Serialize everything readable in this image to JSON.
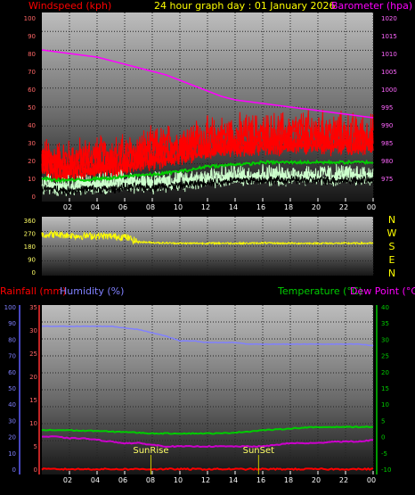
{
  "header": {
    "wind_label": "Windspeed (kph)",
    "title": "24 hour graph day : 01 January 2026",
    "baro_label": "Barometer (hpa)"
  },
  "lower_header": {
    "rain_label": "Rainfall (mm)",
    "humidity_label": "Humidity (%)",
    "temp_label": "Temperature (°C)",
    "dew_label": "Dew Point (°C)"
  },
  "compass": [
    "N",
    "W",
    "S",
    "E",
    "N"
  ],
  "annotations": {
    "sunrise": "SunRise",
    "sunset": "SunSet"
  },
  "colors": {
    "wind_label": "#ff0000",
    "title": "#ffff00",
    "baro": "#ff00ff",
    "wind_gust": "#ff0000",
    "wind_avg": "#00cc00",
    "wind_min": "#ccffcc",
    "wind_dark": "#000000",
    "direction": "#ffff00",
    "rain": "#ff0000",
    "humidity": "#8080ff",
    "temperature": "#00cc00",
    "dewpoint": "#cc00cc",
    "compass": "#ffff00"
  },
  "chart_data": [
    {
      "type": "line",
      "title": "24 hour graph day : 01 January 2026",
      "x_ticks": [
        "02",
        "04",
        "06",
        "08",
        "10",
        "12",
        "14",
        "16",
        "18",
        "20",
        "22",
        "00"
      ],
      "y_left": {
        "label": "Windspeed (kph)",
        "range": [
          0,
          100
        ],
        "ticks": [
          0,
          10,
          20,
          30,
          40,
          50,
          60,
          70,
          80,
          90,
          100
        ]
      },
      "y_right": {
        "label": "Barometer (hpa)",
        "range": [
          970,
          1020
        ],
        "ticks": [
          975,
          980,
          985,
          990,
          995,
          1000,
          1005,
          1010,
          1015,
          1020
        ]
      },
      "grid": true,
      "series": [
        {
          "name": "Windspeed (kph)",
          "axis": "left",
          "x": [
            0,
            1,
            2,
            3,
            4,
            5,
            6,
            7,
            8,
            9,
            10,
            11,
            12,
            13,
            14,
            15,
            16,
            17,
            18,
            19,
            20,
            21,
            22,
            23,
            24
          ],
          "values": [
            20,
            19,
            19,
            20,
            21,
            21,
            22,
            24,
            25,
            27,
            28,
            30,
            31,
            32,
            33,
            33,
            34,
            34,
            34,
            35,
            35,
            34,
            34,
            33,
            33
          ]
        },
        {
          "axis": "left",
          "x": [
            0,
            1,
            2,
            3,
            4,
            5,
            6,
            7,
            8,
            9,
            10,
            11,
            12,
            13,
            14,
            15,
            16,
            17,
            18,
            19,
            20,
            21,
            22,
            23,
            24
          ],
          "values": [
            10,
            9,
            9,
            9,
            10,
            10,
            11,
            12,
            12,
            13,
            14,
            15,
            17,
            17,
            18,
            18,
            19,
            19,
            19,
            19,
            19,
            19,
            19,
            19,
            19
          ]
        },
        {
          "axis": "left",
          "x": [
            0,
            1,
            2,
            3,
            4,
            5,
            6,
            7,
            8,
            9,
            10,
            11,
            12,
            13,
            14,
            15,
            16,
            17,
            18,
            19,
            20,
            21,
            22,
            23,
            24
          ],
          "values": [
            5,
            5,
            4,
            5,
            5,
            5,
            6,
            6,
            6,
            7,
            7,
            8,
            9,
            9,
            10,
            10,
            10,
            10,
            10,
            10,
            10,
            10,
            10,
            10,
            10
          ]
        },
        {
          "name": "Barometer (hpa)",
          "axis": "right",
          "x": [
            0,
            1,
            2,
            3,
            4,
            5,
            6,
            7,
            8,
            9,
            10,
            11,
            12,
            13,
            14,
            15,
            16,
            17,
            18,
            19,
            20,
            21,
            22,
            23,
            24
          ],
          "values": [
            1011,
            1010.5,
            1010,
            1009.5,
            1009,
            1008,
            1007,
            1006,
            1005,
            1004,
            1002.5,
            1001,
            999.5,
            998,
            997,
            996.5,
            996,
            995.5,
            995,
            994.5,
            994,
            993.5,
            993,
            992.5,
            992
          ]
        }
      ]
    },
    {
      "type": "line",
      "x_ticks": [
        "02",
        "04",
        "06",
        "08",
        "10",
        "12",
        "14",
        "16",
        "18",
        "20",
        "22",
        "00"
      ],
      "y_left": {
        "range": [
          0,
          360
        ],
        "ticks": [
          0,
          90,
          180,
          270,
          360
        ]
      },
      "y_right": {
        "labels": [
          "N",
          "W",
          "S",
          "E",
          "N"
        ]
      },
      "grid": true,
      "series": [
        {
          "name": "Wind direction",
          "x": [
            0,
            1,
            2,
            3,
            4,
            5,
            6,
            7,
            8,
            9,
            10,
            11,
            12,
            13,
            14,
            15,
            16,
            17,
            18,
            19,
            20,
            21,
            22,
            23,
            24
          ],
          "values": [
            260,
            262,
            255,
            250,
            252,
            248,
            245,
            210,
            205,
            202,
            200,
            200,
            200,
            201,
            200,
            200,
            202,
            200,
            200,
            200,
            200,
            200,
            200,
            200,
            200
          ]
        }
      ]
    },
    {
      "type": "line",
      "x_ticks": [
        "02",
        "04",
        "06",
        "08",
        "10",
        "12",
        "14",
        "16",
        "18",
        "20",
        "22",
        "00"
      ],
      "y_left_rain": {
        "label": "Rainfall (mm)",
        "range": [
          0,
          35
        ],
        "ticks": [
          0,
          5,
          10,
          15,
          20,
          25,
          30,
          35
        ]
      },
      "y_left_humidity": {
        "label": "Humidity (%)",
        "range": [
          0,
          100
        ],
        "ticks": [
          0,
          10,
          20,
          30,
          40,
          50,
          60,
          70,
          80,
          90,
          100
        ]
      },
      "y_right": {
        "label": "Temperature (°C)",
        "range": [
          -10,
          40
        ],
        "ticks": [
          -10,
          -5,
          0,
          5,
          10,
          15,
          20,
          25,
          30,
          35,
          40
        ]
      },
      "annotations": [
        {
          "text": "SunRise",
          "x": 7.9
        },
        {
          "text": "SunSet",
          "x": 15.7
        }
      ],
      "grid": true,
      "series": [
        {
          "name": "Humidity (%)",
          "axis": "humidity",
          "x": [
            0,
            1,
            2,
            3,
            4,
            5,
            6,
            7,
            8,
            9,
            10,
            11,
            12,
            13,
            14,
            15,
            16,
            17,
            18,
            19,
            20,
            21,
            22,
            23,
            24
          ],
          "values": [
            88,
            88,
            88,
            88,
            88,
            88,
            87,
            86,
            84,
            82,
            79,
            79,
            78,
            78,
            78,
            77,
            77,
            77,
            77,
            77,
            77,
            77,
            77,
            77,
            76
          ]
        },
        {
          "name": "Temperature (°C)",
          "axis": "right",
          "x": [
            0,
            1,
            2,
            3,
            4,
            5,
            6,
            7,
            8,
            9,
            10,
            11,
            12,
            13,
            14,
            15,
            16,
            17,
            18,
            19,
            20,
            21,
            22,
            23,
            24
          ],
          "values": [
            2,
            2,
            2,
            1.8,
            1.8,
            1.5,
            1.5,
            1.2,
            1,
            1,
            1,
            1,
            1,
            1,
            1.3,
            1.6,
            2,
            2.2,
            2.5,
            2.8,
            2.9,
            3,
            3,
            3,
            3
          ]
        },
        {
          "name": "Dew Point (°C)",
          "axis": "right",
          "x": [
            0,
            1,
            2,
            3,
            4,
            5,
            6,
            7,
            8,
            9,
            10,
            11,
            12,
            13,
            14,
            15,
            16,
            17,
            18,
            19,
            20,
            21,
            22,
            23,
            24
          ],
          "values": [
            0,
            0,
            -0.5,
            -0.5,
            -1,
            -1.5,
            -2,
            -2,
            -2.5,
            -3,
            -3,
            -3,
            -3,
            -3,
            -3,
            -3,
            -3,
            -2.5,
            -2,
            -2,
            -2,
            -1.5,
            -1.5,
            -1.5,
            -1
          ]
        },
        {
          "name": "Rainfall (mm)",
          "axis": "rain",
          "x": [
            0,
            1,
            2,
            3,
            4,
            5,
            6,
            7,
            8,
            9,
            10,
            11,
            12,
            13,
            14,
            15,
            16,
            17,
            18,
            19,
            20,
            21,
            22,
            23,
            24
          ],
          "values": [
            0,
            0,
            0,
            0,
            0,
            0,
            0,
            0,
            0,
            0,
            0,
            0,
            0,
            0,
            0,
            0,
            0,
            0,
            0,
            0,
            0,
            0,
            0,
            0,
            0
          ]
        }
      ]
    }
  ]
}
